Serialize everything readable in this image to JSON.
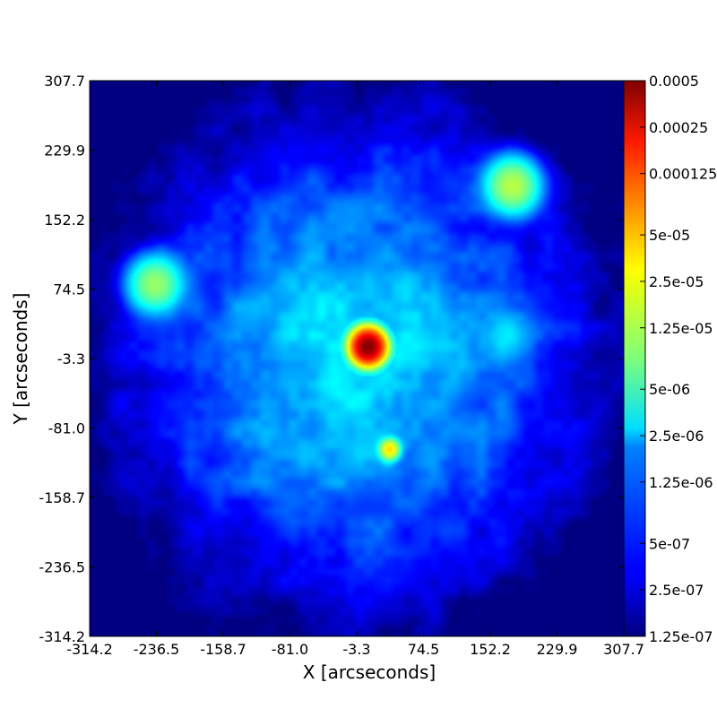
{
  "chart_data": {
    "type": "heatmap",
    "title": "",
    "xlabel": "X [arcseconds]",
    "ylabel": "Y [arcseconds]",
    "xlim": [
      -314.2,
      307.7
    ],
    "ylim": [
      -314.2,
      307.7
    ],
    "x_ticks": [
      "-314.2",
      "-236.5",
      "-158.7",
      "-81.0",
      "-3.3",
      "74.5",
      "152.2",
      "229.9",
      "307.7"
    ],
    "y_ticks": [
      "-314.2",
      "-236.5",
      "-158.7",
      "-81.0",
      "-3.3",
      "74.5",
      "152.2",
      "229.9",
      "307.7"
    ],
    "colormap": "jet",
    "color_scale": "log",
    "color_range": [
      1.25e-07,
      0.0005
    ],
    "colorbar_ticks": [
      "1.25e-07",
      "2.5e-07",
      "5e-07",
      "1.25e-06",
      "2.5e-06",
      "5e-06",
      "1.25e-05",
      "2.5e-05",
      "5e-05",
      "0.000125",
      "0.00025",
      "0.0005"
    ],
    "features": [
      {
        "x": 10,
        "y": 10,
        "value": 0.0005
      },
      {
        "x": 35,
        "y": -105,
        "value": 3e-05
      },
      {
        "x": 178,
        "y": 190,
        "value": 1.5e-05
      },
      {
        "x": -238,
        "y": 80,
        "value": 1.2e-05
      },
      {
        "x": 172,
        "y": 20,
        "value": 4e-06
      }
    ],
    "background_level": 2.5e-06
  }
}
